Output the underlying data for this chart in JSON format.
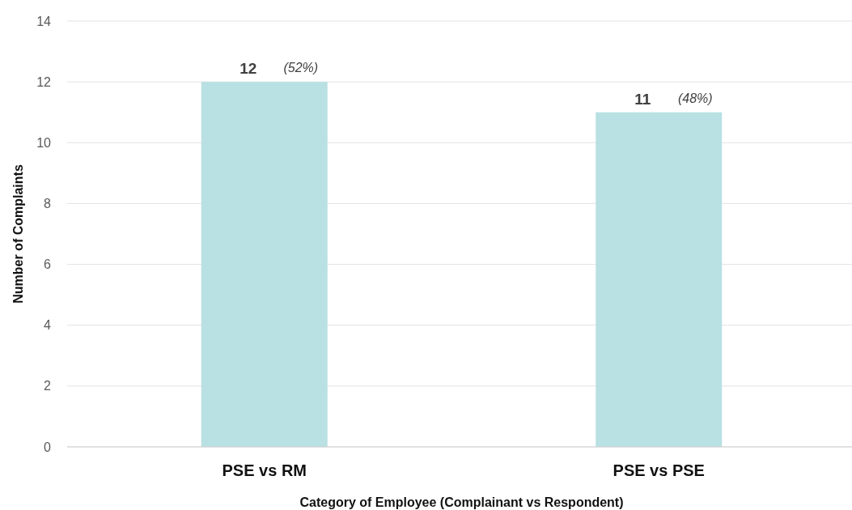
{
  "chart_data": {
    "type": "bar",
    "xlabel": "Category of Employee (Complainant vs Respondent)",
    "ylabel": "Number of Complaints",
    "categories": [
      "PSE vs RM",
      "PSE vs PSE"
    ],
    "values": [
      12,
      11
    ],
    "color": "#b9e0e3",
    "ylim": [
      0,
      14
    ],
    "yticks": [
      0,
      2,
      4,
      6,
      8,
      10,
      12,
      14
    ],
    "grid": "y",
    "data_labels": true,
    "annotations": [
      {
        "text": "(52%)",
        "x": "PSE vs RM",
        "y": 12
      },
      {
        "text": "(48%)",
        "x": "PSE vs PSE",
        "y": 11
      }
    ]
  }
}
